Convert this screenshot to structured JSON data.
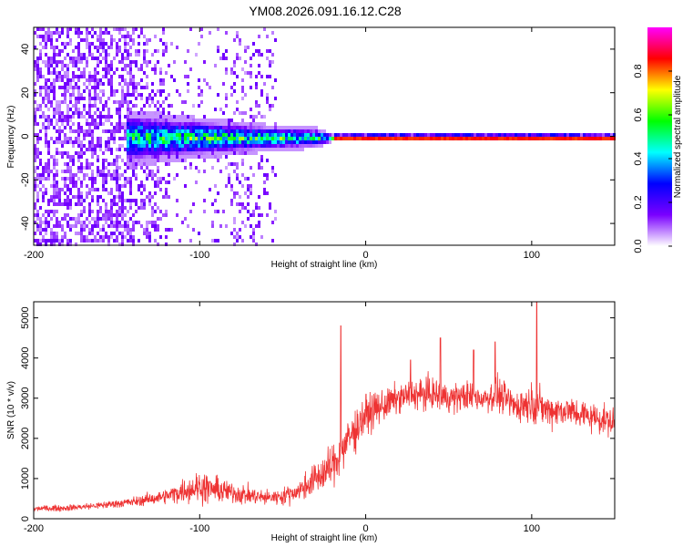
{
  "figure": {
    "title": "YM08.2026.091.16.12.C28"
  },
  "chart_data": [
    {
      "type": "heatmap",
      "xlabel": "Height of straight line (km)",
      "ylabel": "Frequency (Hz)",
      "xlim": [
        -200,
        150
      ],
      "ylim": [
        -50,
        50
      ],
      "xticks": [
        -200,
        -100,
        0,
        100
      ],
      "xtick_labels": [
        "-200",
        "-100",
        "0",
        "100"
      ],
      "yticks": [
        -40,
        -20,
        0,
        20,
        40
      ],
      "ytick_labels": [
        "-40",
        "-20",
        "0",
        "20",
        "40"
      ],
      "colorbar": {
        "label": "Normalized spectral amplitude",
        "range": [
          0,
          1
        ],
        "ticks": [
          0.0,
          0.2,
          0.4,
          0.6,
          0.8
        ],
        "tick_labels": [
          "0.0",
          "0.2",
          "0.4",
          "0.6",
          "0.8"
        ],
        "colors": [
          "#ffffff",
          "#7a00ff",
          "#0000ff",
          "#00ffff",
          "#00ff00",
          "#ffff00",
          "#ff0000",
          "#ff00ff"
        ]
      },
      "description_series": {
        "noise_region_x": [
          -200,
          -60
        ],
        "signal_band_center_hz": 0,
        "signal_band_halfwidth_hz_at_x": [
          [
            -140,
            8
          ],
          [
            -100,
            6
          ],
          [
            -60,
            4
          ],
          [
            -30,
            3
          ],
          [
            -20,
            1
          ],
          [
            0,
            1
          ],
          [
            150,
            1
          ]
        ]
      }
    },
    {
      "type": "line",
      "xlabel": "Height of straight line (km)",
      "ylabel": "SNR (10 * v/v)",
      "xlim": [
        -200,
        150
      ],
      "ylim": [
        0,
        5400
      ],
      "xticks": [
        -200,
        -100,
        0,
        100
      ],
      "xtick_labels": [
        "-200",
        "-100",
        "0",
        "100"
      ],
      "yticks": [
        0,
        1000,
        2000,
        3000,
        4000,
        5000
      ],
      "ytick_labels": [
        "0",
        "1000",
        "2000",
        "3000",
        "4000",
        "5000"
      ],
      "color": "#ee3333",
      "envelope": {
        "x": [
          -200,
          -180,
          -160,
          -150,
          -140,
          -120,
          -110,
          -100,
          -90,
          -80,
          -70,
          -60,
          -50,
          -40,
          -30,
          -20,
          -10,
          0,
          10,
          20,
          30,
          40,
          50,
          60,
          70,
          80,
          90,
          100,
          110,
          120,
          130,
          140,
          150
        ],
        "mean": [
          250,
          270,
          330,
          380,
          420,
          560,
          700,
          800,
          720,
          650,
          580,
          520,
          560,
          700,
          1000,
          1300,
          2000,
          2600,
          2800,
          3000,
          3100,
          3100,
          3000,
          3050,
          3000,
          3100,
          2800,
          2900,
          2700,
          2700,
          2600,
          2500,
          2400
        ],
        "amplitude": [
          120,
          130,
          150,
          180,
          200,
          300,
          500,
          700,
          550,
          450,
          400,
          300,
          350,
          450,
          700,
          900,
          1000,
          800,
          700,
          600,
          650,
          700,
          600,
          650,
          600,
          700,
          700,
          800,
          700,
          650,
          650,
          600,
          600
        ]
      },
      "peaks": [
        [
          -15,
          4800
        ],
        [
          27,
          3950
        ],
        [
          45,
          4500
        ],
        [
          65,
          4200
        ],
        [
          78,
          4400
        ],
        [
          103,
          5400
        ]
      ]
    }
  ]
}
